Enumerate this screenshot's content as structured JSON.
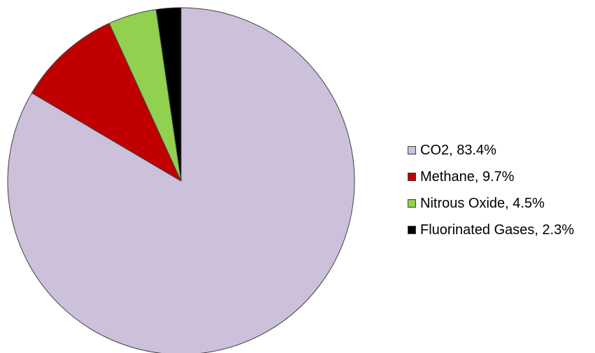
{
  "chart_data": {
    "type": "pie",
    "title": "",
    "slices": [
      {
        "label": "CO2",
        "value": 83.4,
        "color": "#ccc0da",
        "legend_label": "CO2, 83.4%"
      },
      {
        "label": "Methane",
        "value": 9.7,
        "color": "#c00000",
        "legend_label": "Methane, 9.7%"
      },
      {
        "label": "Nitrous Oxide",
        "value": 4.5,
        "color": "#92d050",
        "legend_label": "Nitrous Oxide, 4.5%"
      },
      {
        "label": "Fluorinated Gases",
        "value": 2.3,
        "color": "#000000",
        "legend_label": "Fluorinated Gases, 2.3%"
      }
    ],
    "start_angle": "12 o'clock",
    "direction": "clockwise",
    "legend_position": "right",
    "slice_border_color": "#404040"
  }
}
